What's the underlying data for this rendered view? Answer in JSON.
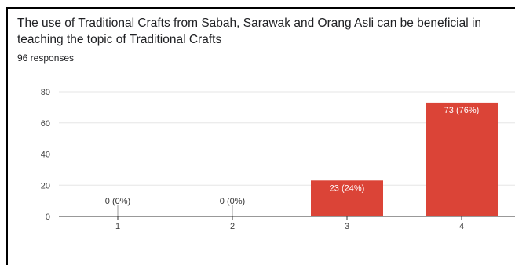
{
  "question": {
    "title": "The use of Traditional Crafts from Sabah, Sarawak and Orang Asli can be beneficial in teaching the topic of Traditional Crafts",
    "responses": "96 responses"
  },
  "colors": {
    "bar": "#db4437",
    "grid": "#e6e6e6",
    "axis": "#333333"
  },
  "chart_data": {
    "type": "bar",
    "title": "The use of Traditional Crafts from Sabah, Sarawak and Orang Asli can be beneficial in teaching the topic of Traditional Crafts",
    "xlabel": "",
    "ylabel": "",
    "categories": [
      "1",
      "2",
      "3",
      "4"
    ],
    "values": [
      0,
      0,
      23,
      73
    ],
    "data_labels": [
      "0 (0%)",
      "0 (0%)",
      "23 (24%)",
      "73 (76%)"
    ],
    "ylim": [
      0,
      80
    ],
    "yticks": [
      0,
      20,
      40,
      60,
      80
    ],
    "grid": true,
    "legend": "none"
  }
}
